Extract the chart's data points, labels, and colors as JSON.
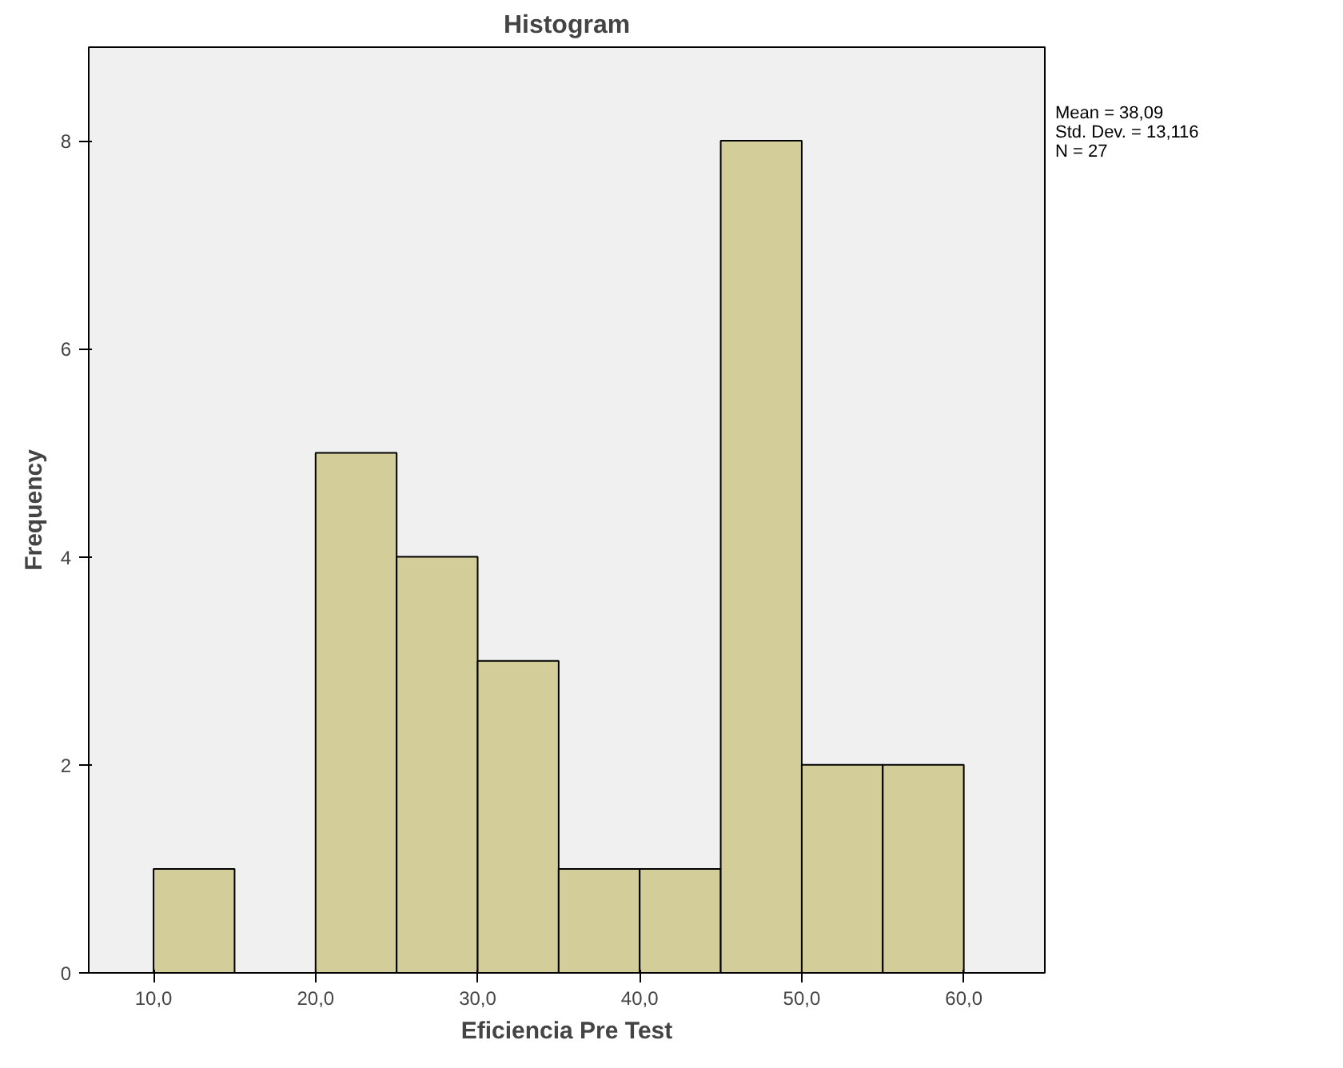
{
  "chart_data": {
    "type": "histogram",
    "title": "Histogram",
    "xlabel": "Eficiencia Pre Test",
    "ylabel": "Frequency",
    "bins": [
      10,
      15,
      20,
      25,
      30,
      35,
      40,
      45,
      50,
      55,
      60
    ],
    "values": [
      1,
      0,
      5,
      4,
      3,
      1,
      1,
      8,
      2,
      2
    ],
    "color": "#d3cd99",
    "xlim": [
      6,
      65
    ],
    "ylim": [
      0,
      8.9
    ],
    "xticks": [
      {
        "value": 10,
        "label": "10,0"
      },
      {
        "value": 20,
        "label": "20,0"
      },
      {
        "value": 30,
        "label": "30,0"
      },
      {
        "value": 40,
        "label": "40,0"
      },
      {
        "value": 50,
        "label": "50,0"
      },
      {
        "value": 60,
        "label": "60,0"
      }
    ],
    "yticks": [
      0,
      2,
      4,
      6,
      8
    ],
    "grid": false,
    "annotations": [
      "Mean = 38,09",
      "Std. Dev. = 13,116",
      "N = 27"
    ]
  }
}
